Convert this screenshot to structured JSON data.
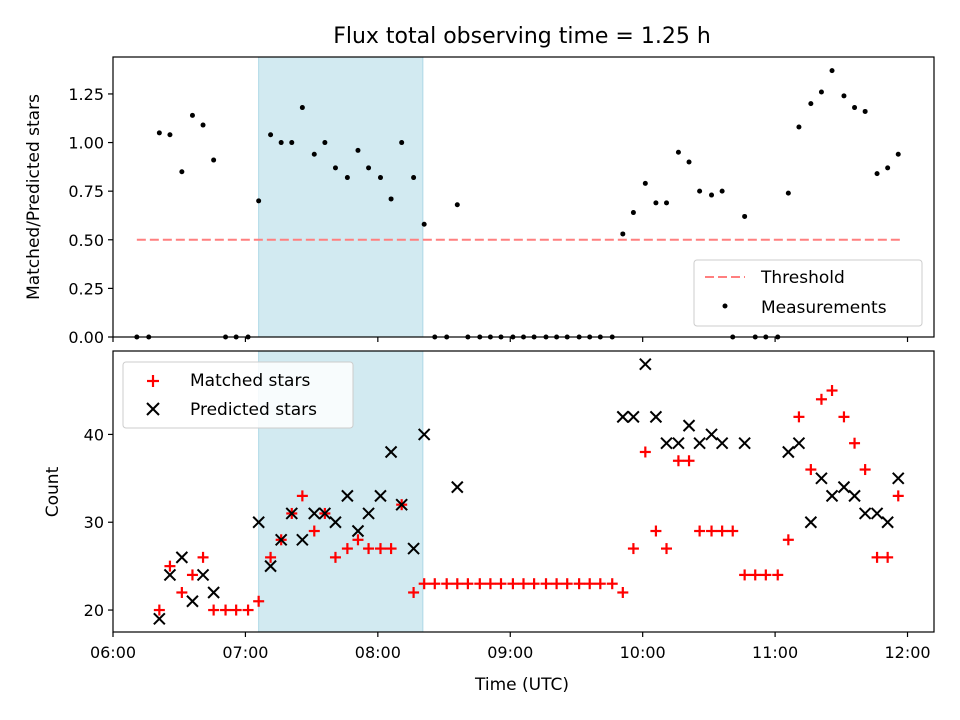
{
  "chart_data": {
    "title": "Flux total observing time = 1.25 h",
    "x_axis": {
      "label": "Time (UTC)",
      "range_hours": [
        6.0,
        12.2
      ],
      "tick_labels": [
        "06:00",
        "07:00",
        "08:00",
        "09:00",
        "10:00",
        "11:00",
        "12:00"
      ],
      "tick_values": [
        6,
        7,
        8,
        9,
        10,
        11,
        12
      ]
    },
    "shaded_interval": {
      "x": [
        7.1,
        8.34
      ],
      "color": "#add8e6"
    },
    "panels": [
      {
        "type": "scatter",
        "ylabel": "Matched/Predicted stars",
        "ylim": [
          0.0,
          1.44
        ],
        "y_ticks": [
          "0.00",
          "0.25",
          "0.50",
          "0.75",
          "1.00",
          "1.25"
        ],
        "y_tick_values": [
          0,
          0.25,
          0.5,
          0.75,
          1.0,
          1.25
        ],
        "legend": {
          "placement": "lower-right",
          "entries": [
            "Threshold",
            "Measurements"
          ]
        },
        "series": [
          {
            "name": "Threshold",
            "type": "dashed-line",
            "color": "#ff7f7f",
            "points": [
              [
                6.18,
                0.5
              ],
              [
                11.95,
                0.5
              ]
            ]
          },
          {
            "name": "Measurements",
            "type": "dots",
            "color": "#000000",
            "points": [
              [
                6.18,
                0.0
              ],
              [
                6.27,
                0.0
              ],
              [
                6.35,
                1.05
              ],
              [
                6.43,
                1.04
              ],
              [
                6.52,
                0.85
              ],
              [
                6.6,
                1.14
              ],
              [
                6.68,
                1.09
              ],
              [
                6.76,
                0.91
              ],
              [
                6.85,
                0.0
              ],
              [
                6.93,
                0.0
              ],
              [
                7.02,
                0.0
              ],
              [
                7.1,
                0.7
              ],
              [
                7.19,
                1.04
              ],
              [
                7.27,
                1.0
              ],
              [
                7.35,
                1.0
              ],
              [
                7.43,
                1.18
              ],
              [
                7.52,
                0.94
              ],
              [
                7.6,
                1.0
              ],
              [
                7.68,
                0.87
              ],
              [
                7.77,
                0.82
              ],
              [
                7.85,
                0.96
              ],
              [
                7.93,
                0.87
              ],
              [
                8.02,
                0.82
              ],
              [
                8.1,
                0.71
              ],
              [
                8.18,
                1.0
              ],
              [
                8.27,
                0.82
              ],
              [
                8.35,
                0.58
              ],
              [
                8.43,
                0.0
              ],
              [
                8.52,
                0.0
              ],
              [
                8.6,
                0.68
              ],
              [
                8.68,
                0.0
              ],
              [
                8.77,
                0.0
              ],
              [
                8.85,
                0.0
              ],
              [
                8.93,
                0.0
              ],
              [
                9.02,
                0.0
              ],
              [
                9.1,
                0.0
              ],
              [
                9.18,
                0.0
              ],
              [
                9.27,
                0.0
              ],
              [
                9.35,
                0.0
              ],
              [
                9.43,
                0.0
              ],
              [
                9.52,
                0.0
              ],
              [
                9.6,
                0.0
              ],
              [
                9.68,
                0.0
              ],
              [
                9.77,
                0.0
              ],
              [
                9.85,
                0.53
              ],
              [
                9.93,
                0.64
              ],
              [
                10.02,
                0.79
              ],
              [
                10.1,
                0.69
              ],
              [
                10.18,
                0.69
              ],
              [
                10.27,
                0.95
              ],
              [
                10.35,
                0.9
              ],
              [
                10.43,
                0.75
              ],
              [
                10.52,
                0.73
              ],
              [
                10.6,
                0.75
              ],
              [
                10.68,
                0.0
              ],
              [
                10.77,
                0.62
              ],
              [
                10.85,
                0.0
              ],
              [
                10.93,
                0.0
              ],
              [
                11.02,
                0.0
              ],
              [
                11.1,
                0.74
              ],
              [
                11.18,
                1.08
              ],
              [
                11.27,
                1.2
              ],
              [
                11.35,
                1.26
              ],
              [
                11.43,
                1.37
              ],
              [
                11.52,
                1.24
              ],
              [
                11.6,
                1.18
              ],
              [
                11.68,
                1.16
              ],
              [
                11.77,
                0.84
              ],
              [
                11.85,
                0.87
              ],
              [
                11.93,
                0.94
              ]
            ]
          }
        ]
      },
      {
        "type": "scatter",
        "ylabel": "Count",
        "ylim": [
          17.5,
          49.5
        ],
        "y_ticks": [
          "20",
          "30",
          "40"
        ],
        "y_tick_values": [
          20,
          30,
          40
        ],
        "legend": {
          "placement": "upper-left",
          "entries": [
            "Matched stars",
            "Predicted stars"
          ]
        },
        "series": [
          {
            "name": "Matched stars",
            "type": "plus",
            "color": "#ff0000",
            "points": [
              [
                6.35,
                20
              ],
              [
                6.43,
                25
              ],
              [
                6.52,
                22
              ],
              [
                6.6,
                24
              ],
              [
                6.68,
                26
              ],
              [
                6.76,
                20
              ],
              [
                6.85,
                20
              ],
              [
                6.93,
                20
              ],
              [
                7.02,
                20
              ],
              [
                7.1,
                21
              ],
              [
                7.19,
                26
              ],
              [
                7.27,
                28
              ],
              [
                7.35,
                31
              ],
              [
                7.43,
                33
              ],
              [
                7.52,
                29
              ],
              [
                7.6,
                31
              ],
              [
                7.68,
                26
              ],
              [
                7.77,
                27
              ],
              [
                7.85,
                28
              ],
              [
                7.93,
                27
              ],
              [
                8.02,
                27
              ],
              [
                8.1,
                27
              ],
              [
                8.18,
                32
              ],
              [
                8.27,
                22
              ],
              [
                8.35,
                23
              ],
              [
                8.43,
                23
              ],
              [
                8.52,
                23
              ],
              [
                8.6,
                23
              ],
              [
                8.68,
                23
              ],
              [
                8.77,
                23
              ],
              [
                8.85,
                23
              ],
              [
                8.93,
                23
              ],
              [
                9.02,
                23
              ],
              [
                9.1,
                23
              ],
              [
                9.18,
                23
              ],
              [
                9.27,
                23
              ],
              [
                9.35,
                23
              ],
              [
                9.43,
                23
              ],
              [
                9.52,
                23
              ],
              [
                9.6,
                23
              ],
              [
                9.68,
                23
              ],
              [
                9.77,
                23
              ],
              [
                9.85,
                22
              ],
              [
                9.93,
                27
              ],
              [
                10.02,
                38
              ],
              [
                10.1,
                29
              ],
              [
                10.18,
                27
              ],
              [
                10.27,
                37
              ],
              [
                10.35,
                37
              ],
              [
                10.43,
                29
              ],
              [
                10.52,
                29
              ],
              [
                10.6,
                29
              ],
              [
                10.68,
                29
              ],
              [
                10.77,
                24
              ],
              [
                10.85,
                24
              ],
              [
                10.93,
                24
              ],
              [
                11.02,
                24
              ],
              [
                11.1,
                28
              ],
              [
                11.18,
                42
              ],
              [
                11.27,
                36
              ],
              [
                11.35,
                44
              ],
              [
                11.43,
                45
              ],
              [
                11.52,
                42
              ],
              [
                11.6,
                39
              ],
              [
                11.68,
                36
              ],
              [
                11.77,
                26
              ],
              [
                11.85,
                26
              ],
              [
                11.93,
                33
              ]
            ]
          },
          {
            "name": "Predicted stars",
            "type": "x",
            "color": "#000000",
            "points": [
              [
                6.35,
                19
              ],
              [
                6.43,
                24
              ],
              [
                6.52,
                26
              ],
              [
                6.6,
                21
              ],
              [
                6.68,
                24
              ],
              [
                6.76,
                22
              ],
              [
                7.1,
                30
              ],
              [
                7.19,
                25
              ],
              [
                7.27,
                28
              ],
              [
                7.35,
                31
              ],
              [
                7.43,
                28
              ],
              [
                7.52,
                31
              ],
              [
                7.6,
                31
              ],
              [
                7.68,
                30
              ],
              [
                7.77,
                33
              ],
              [
                7.85,
                29
              ],
              [
                7.93,
                31
              ],
              [
                8.02,
                33
              ],
              [
                8.1,
                38
              ],
              [
                8.18,
                32
              ],
              [
                8.27,
                27
              ],
              [
                8.35,
                40
              ],
              [
                8.6,
                34
              ],
              [
                9.85,
                42
              ],
              [
                9.93,
                42
              ],
              [
                10.02,
                48
              ],
              [
                10.1,
                42
              ],
              [
                10.18,
                39
              ],
              [
                10.27,
                39
              ],
              [
                10.35,
                41
              ],
              [
                10.43,
                39
              ],
              [
                10.52,
                40
              ],
              [
                10.6,
                39
              ],
              [
                10.77,
                39
              ],
              [
                11.1,
                38
              ],
              [
                11.18,
                39
              ],
              [
                11.27,
                30
              ],
              [
                11.35,
                35
              ],
              [
                11.43,
                33
              ],
              [
                11.52,
                34
              ],
              [
                11.6,
                33
              ],
              [
                11.68,
                31
              ],
              [
                11.77,
                31
              ],
              [
                11.85,
                30
              ],
              [
                11.93,
                35
              ]
            ]
          }
        ]
      }
    ]
  }
}
